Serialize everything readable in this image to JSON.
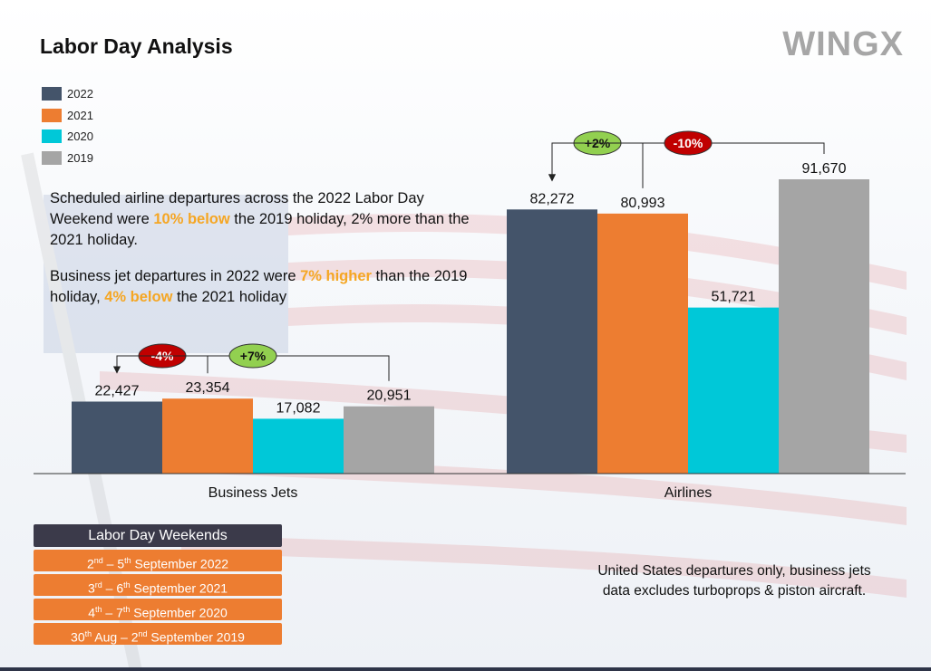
{
  "header": {
    "title": "Labor Day Analysis",
    "brand": "WINGX"
  },
  "legend": [
    {
      "label": "2022",
      "color": "#44546a"
    },
    {
      "label": "2021",
      "color": "#ed7d31"
    },
    {
      "label": "2020",
      "color": "#00c8d8"
    },
    {
      "label": "2019",
      "color": "#a5a5a5"
    }
  ],
  "summary": {
    "p1_a": "Scheduled airline departures across the 2022 Labor Day Weekend were ",
    "p1_hl": "10% below",
    "p1_b": " the 2019 holiday, 2% more than the 2021 holiday.",
    "p2_a": "Business jet departures in 2022 were ",
    "p2_hl1": "7% higher",
    "p2_b": " than the 2019 holiday, ",
    "p2_hl2": "4% below",
    "p2_c": " the 2021 holiday"
  },
  "chart_data": {
    "type": "bar",
    "categories": [
      "Business Jets",
      "Airlines"
    ],
    "series": [
      {
        "name": "2022",
        "values": [
          22427,
          82272
        ]
      },
      {
        "name": "2021",
        "values": [
          23354,
          80993
        ]
      },
      {
        "name": "2020",
        "values": [
          17082,
          51721
        ]
      },
      {
        "name": "2019",
        "values": [
          20951,
          91670
        ]
      }
    ],
    "value_labels": [
      [
        "22,427",
        "82,272"
      ],
      [
        "23,354",
        "80,993"
      ],
      [
        "17,082",
        "51,721"
      ],
      [
        "20,951",
        "91,670"
      ]
    ],
    "colors": [
      "#44546a",
      "#ed7d31",
      "#00c8d8",
      "#a5a5a5"
    ],
    "legend_position": "top-left",
    "grid": false,
    "annotations": [
      {
        "category": "Business Jets",
        "from": "2021",
        "to": "2022",
        "label": "-4%",
        "fill": "#c00000"
      },
      {
        "category": "Business Jets",
        "from": "2019",
        "to": "2022",
        "label": "+7%",
        "fill": "#92d050"
      },
      {
        "category": "Airlines",
        "from": "2021",
        "to": "2022",
        "label": "+2%",
        "fill": "#92d050"
      },
      {
        "category": "Airlines",
        "from": "2019",
        "to": "2022",
        "label": "-10%",
        "fill": "#c00000"
      }
    ]
  },
  "weekends": {
    "title": "Labor Day Weekends",
    "rows": [
      {
        "a": "2",
        "a_sup": "nd",
        "b": " – 5",
        "b_sup": "th",
        "c": " September 2022"
      },
      {
        "a": "3",
        "a_sup": "rd",
        "b": " – 6",
        "b_sup": "th",
        "c": " September 2021"
      },
      {
        "a": "4",
        "a_sup": "th",
        "b": " – 7",
        "b_sup": "th",
        "c": " September 2020"
      },
      {
        "a": "30",
        "a_sup": "th",
        "b": " Aug – 2",
        "b_sup": "nd",
        "c": " September 2019"
      }
    ]
  },
  "footnote": {
    "line1": "United States departures only, business jets",
    "line2": "data excludes turboprops & piston aircraft."
  }
}
